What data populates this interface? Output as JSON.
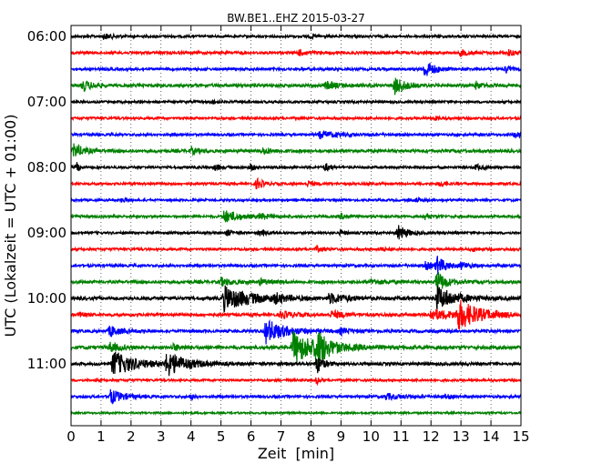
{
  "chart_data": {
    "type": "line",
    "title": "BW.BE1..EHZ 2015-03-27",
    "xlabel": "Zeit  [min]",
    "ylabel": "UTC (Lokalzeit = UTC + 01:00)",
    "xlim": [
      0,
      15
    ],
    "x_ticks": [
      "0",
      "1",
      "2",
      "3",
      "4",
      "5",
      "6",
      "7",
      "8",
      "9",
      "10",
      "11",
      "12",
      "13",
      "14",
      "15"
    ],
    "y_tick_labels": [
      "06:00",
      "07:00",
      "08:00",
      "09:00",
      "10:00",
      "11:00"
    ],
    "y_tick_rows": [
      0,
      4,
      8,
      12,
      16,
      20
    ],
    "grid": true,
    "trace_interval_min": 15,
    "colors": [
      "#000000",
      "#ff0000",
      "#0000ff",
      "#008000"
    ],
    "series": [
      {
        "start": "06:00",
        "color": "#000000",
        "noise": 1.3,
        "events": [
          {
            "t": 1.1,
            "amp": 3,
            "dur": 0.3
          },
          {
            "t": 8.0,
            "amp": 2,
            "dur": 0.2
          }
        ]
      },
      {
        "start": "06:15",
        "color": "#ff0000",
        "noise": 1.5,
        "events": [
          {
            "t": 7.6,
            "amp": 3,
            "dur": 0.25
          },
          {
            "t": 13.0,
            "amp": 3,
            "dur": 0.25
          },
          {
            "t": 14.6,
            "amp": 3,
            "dur": 0.2
          }
        ]
      },
      {
        "start": "06:30",
        "color": "#0000ff",
        "noise": 1.4,
        "events": [
          {
            "t": 11.8,
            "amp": 10,
            "dur": 0.3
          },
          {
            "t": 14.5,
            "amp": 4,
            "dur": 0.15
          }
        ]
      },
      {
        "start": "06:45",
        "color": "#008000",
        "noise": 1.6,
        "events": [
          {
            "t": 0.4,
            "amp": 6,
            "dur": 0.3
          },
          {
            "t": 8.5,
            "amp": 4,
            "dur": 0.4
          },
          {
            "t": 10.8,
            "amp": 10,
            "dur": 0.3
          },
          {
            "t": 13.5,
            "amp": 4,
            "dur": 0.2
          }
        ]
      },
      {
        "start": "07:00",
        "color": "#000000",
        "noise": 1.3,
        "events": [
          {
            "t": 4.7,
            "amp": 2,
            "dur": 0.2
          }
        ]
      },
      {
        "start": "07:15",
        "color": "#ff0000",
        "noise": 1.3,
        "events": [
          {
            "t": 12.1,
            "amp": 2,
            "dur": 0.2
          }
        ]
      },
      {
        "start": "07:30",
        "color": "#0000ff",
        "noise": 1.3,
        "events": [
          {
            "t": 8.3,
            "amp": 4,
            "dur": 0.6
          },
          {
            "t": 14.8,
            "amp": 3,
            "dur": 0.3
          }
        ]
      },
      {
        "start": "07:45",
        "color": "#008000",
        "noise": 1.6,
        "events": [
          {
            "t": 0.1,
            "amp": 8,
            "dur": 0.3
          },
          {
            "t": 4.0,
            "amp": 3,
            "dur": 0.3
          },
          {
            "t": 6.4,
            "amp": 3,
            "dur": 0.3
          }
        ]
      },
      {
        "start": "08:00",
        "color": "#000000",
        "noise": 1.3,
        "events": [
          {
            "t": 0.2,
            "amp": 5,
            "dur": 0.1
          },
          {
            "t": 4.8,
            "amp": 3,
            "dur": 0.2
          },
          {
            "t": 6.0,
            "amp": 4,
            "dur": 0.1
          },
          {
            "t": 8.5,
            "amp": 4,
            "dur": 0.15
          },
          {
            "t": 13.5,
            "amp": 3,
            "dur": 0.2
          }
        ]
      },
      {
        "start": "08:15",
        "color": "#ff0000",
        "noise": 1.3,
        "events": [
          {
            "t": 6.2,
            "amp": 6,
            "dur": 0.2
          },
          {
            "t": 7.9,
            "amp": 3,
            "dur": 0.2
          },
          {
            "t": 12.3,
            "amp": 3,
            "dur": 0.2
          }
        ]
      },
      {
        "start": "08:30",
        "color": "#0000ff",
        "noise": 1.2,
        "events": [
          {
            "t": 1.7,
            "amp": 2,
            "dur": 0.2
          },
          {
            "t": 11.5,
            "amp": 2,
            "dur": 0.2
          }
        ]
      },
      {
        "start": "08:45",
        "color": "#008000",
        "noise": 1.3,
        "events": [
          {
            "t": 5.1,
            "amp": 7,
            "dur": 0.5
          },
          {
            "t": 6.3,
            "amp": 3,
            "dur": 0.3
          },
          {
            "t": 9.0,
            "amp": 3,
            "dur": 0.2
          },
          {
            "t": 11.8,
            "amp": 3,
            "dur": 0.2
          }
        ]
      },
      {
        "start": "09:00",
        "color": "#000000",
        "noise": 1.3,
        "events": [
          {
            "t": 5.2,
            "amp": 3,
            "dur": 0.2
          },
          {
            "t": 6.3,
            "amp": 3,
            "dur": 0.2
          },
          {
            "t": 9.0,
            "amp": 3,
            "dur": 0.15
          },
          {
            "t": 10.9,
            "amp": 8,
            "dur": 0.3
          }
        ]
      },
      {
        "start": "09:15",
        "color": "#ff0000",
        "noise": 1.3,
        "events": [
          {
            "t": 8.2,
            "amp": 3,
            "dur": 0.2
          },
          {
            "t": 10.3,
            "amp": 2,
            "dur": 0.2
          },
          {
            "t": 13.4,
            "amp": 2,
            "dur": 0.2
          }
        ]
      },
      {
        "start": "09:30",
        "color": "#0000ff",
        "noise": 1.4,
        "events": [
          {
            "t": 11.8,
            "amp": 4,
            "dur": 0.3
          },
          {
            "t": 12.2,
            "amp": 9,
            "dur": 0.3
          },
          {
            "t": 13.0,
            "amp": 3,
            "dur": 0.3
          }
        ]
      },
      {
        "start": "09:45",
        "color": "#008000",
        "noise": 1.6,
        "events": [
          {
            "t": 5.0,
            "amp": 4,
            "dur": 0.4
          },
          {
            "t": 6.3,
            "amp": 3,
            "dur": 0.3
          },
          {
            "t": 10.0,
            "amp": 3,
            "dur": 0.4
          },
          {
            "t": 12.2,
            "amp": 12,
            "dur": 0.3
          }
        ]
      },
      {
        "start": "10:00",
        "color": "#000000",
        "noise": 1.8,
        "events": [
          {
            "t": 5.1,
            "amp": 13,
            "dur": 0.9
          },
          {
            "t": 6.8,
            "amp": 4,
            "dur": 0.3
          },
          {
            "t": 8.6,
            "amp": 5,
            "dur": 0.6
          },
          {
            "t": 12.2,
            "amp": 13,
            "dur": 0.6
          }
        ]
      },
      {
        "start": "10:15",
        "color": "#ff0000",
        "noise": 1.6,
        "events": [
          {
            "t": 0.3,
            "amp": 4,
            "dur": 0.1
          },
          {
            "t": 7.0,
            "amp": 4,
            "dur": 0.4
          },
          {
            "t": 8.7,
            "amp": 4,
            "dur": 0.4
          },
          {
            "t": 12.0,
            "amp": 6,
            "dur": 0.8
          },
          {
            "t": 12.9,
            "amp": 15,
            "dur": 0.7
          }
        ]
      },
      {
        "start": "10:30",
        "color": "#0000ff",
        "noise": 1.6,
        "events": [
          {
            "t": 1.3,
            "amp": 6,
            "dur": 0.3
          },
          {
            "t": 6.5,
            "amp": 13,
            "dur": 0.6
          },
          {
            "t": 9.0,
            "amp": 3,
            "dur": 0.3
          }
        ]
      },
      {
        "start": "10:45",
        "color": "#008000",
        "noise": 1.8,
        "events": [
          {
            "t": 1.3,
            "amp": 5,
            "dur": 0.3
          },
          {
            "t": 3.4,
            "amp": 3,
            "dur": 0.3
          },
          {
            "t": 7.4,
            "amp": 17,
            "dur": 0.9
          },
          {
            "t": 8.2,
            "amp": 16,
            "dur": 0.3
          }
        ]
      },
      {
        "start": "11:00",
        "color": "#000000",
        "noise": 1.6,
        "events": [
          {
            "t": 1.4,
            "amp": 14,
            "dur": 0.7
          },
          {
            "t": 3.2,
            "amp": 13,
            "dur": 0.6
          },
          {
            "t": 8.2,
            "amp": 10,
            "dur": 0.2
          }
        ]
      },
      {
        "start": "11:15",
        "color": "#ff0000",
        "noise": 1.2,
        "events": [
          {
            "t": 8.2,
            "amp": 4,
            "dur": 0.1
          }
        ]
      },
      {
        "start": "11:30",
        "color": "#0000ff",
        "noise": 1.4,
        "events": [
          {
            "t": 1.3,
            "amp": 8,
            "dur": 0.4
          },
          {
            "t": 4.0,
            "amp": 3,
            "dur": 0.1
          },
          {
            "t": 10.5,
            "amp": 3,
            "dur": 0.6
          },
          {
            "t": 12.5,
            "amp": 2,
            "dur": 0.2
          }
        ]
      },
      {
        "start": "11:45",
        "color": "#008000",
        "noise": 1.0,
        "events": []
      }
    ]
  }
}
